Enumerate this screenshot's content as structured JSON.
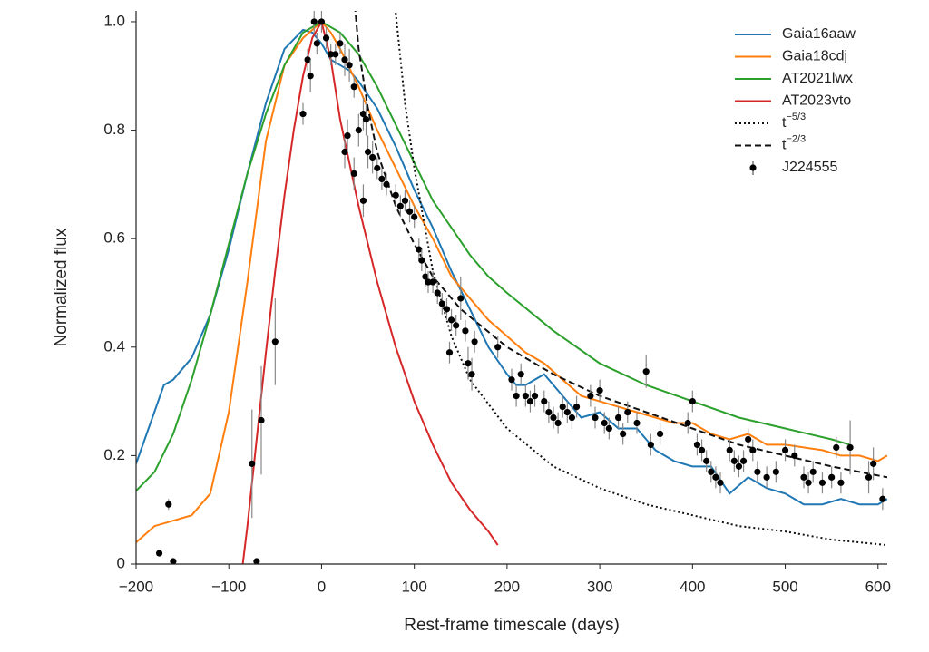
{
  "chart_data": {
    "type": "line",
    "xlabel": "Rest-frame timescale (days)",
    "ylabel": "Normalized flux",
    "xlim": [
      -200,
      610
    ],
    "ylim": [
      0,
      1.02
    ],
    "xticks": [
      {
        "value": -200,
        "label": "−200"
      },
      {
        "value": -100,
        "label": "−100"
      },
      0,
      100,
      200,
      300,
      400,
      500,
      600
    ],
    "yticks": [
      0,
      0.2,
      0.4,
      0.6,
      0.8,
      {
        "value": 1,
        "label": "1.0"
      }
    ],
    "legend": "upper right",
    "series": [
      {
        "name": "Gaia16aaw",
        "color": "#1f77b4",
        "style": "solid",
        "x": [
          -200,
          -170,
          -160,
          -140,
          -120,
          -100,
          -80,
          -60,
          -40,
          -20,
          -10,
          0,
          10,
          20,
          30,
          40,
          60,
          80,
          100,
          120,
          140,
          160,
          180,
          200,
          210,
          220,
          240,
          260,
          280,
          300,
          320,
          340,
          360,
          380,
          400,
          420,
          440,
          460,
          480,
          500,
          520,
          540,
          560,
          580,
          600,
          610
        ],
        "values": [
          0.185,
          0.33,
          0.34,
          0.38,
          0.46,
          0.58,
          0.72,
          0.85,
          0.95,
          0.985,
          0.98,
          0.96,
          0.93,
          0.92,
          0.91,
          0.89,
          0.84,
          0.77,
          0.69,
          0.62,
          0.54,
          0.47,
          0.4,
          0.35,
          0.33,
          0.33,
          0.35,
          0.31,
          0.27,
          0.28,
          0.25,
          0.25,
          0.21,
          0.19,
          0.18,
          0.18,
          0.13,
          0.16,
          0.14,
          0.13,
          0.11,
          0.11,
          0.12,
          0.11,
          0.11,
          0.12
        ]
      },
      {
        "name": "Gaia18cdj",
        "color": "#ff7f0e",
        "style": "solid",
        "x": [
          -200,
          -180,
          -160,
          -140,
          -120,
          -100,
          -80,
          -60,
          -40,
          -20,
          0,
          10,
          20,
          40,
          60,
          80,
          100,
          120,
          140,
          160,
          180,
          200,
          220,
          240,
          260,
          280,
          300,
          320,
          340,
          360,
          380,
          400,
          420,
          440,
          460,
          480,
          500,
          540,
          560,
          580,
          600,
          610
        ],
        "values": [
          0.04,
          0.07,
          0.08,
          0.09,
          0.13,
          0.28,
          0.52,
          0.78,
          0.92,
          0.97,
          1.0,
          0.98,
          0.95,
          0.88,
          0.8,
          0.73,
          0.66,
          0.6,
          0.53,
          0.49,
          0.45,
          0.42,
          0.39,
          0.37,
          0.34,
          0.31,
          0.3,
          0.29,
          0.28,
          0.27,
          0.26,
          0.26,
          0.24,
          0.23,
          0.24,
          0.22,
          0.22,
          0.21,
          0.2,
          0.2,
          0.19,
          0.2
        ]
      },
      {
        "name": "AT2021lwx",
        "color": "#2ca02c",
        "style": "solid",
        "x": [
          -200,
          -180,
          -160,
          -140,
          -120,
          -100,
          -80,
          -60,
          -40,
          -20,
          0,
          20,
          40,
          60,
          80,
          100,
          120,
          140,
          160,
          180,
          200,
          250,
          300,
          350,
          400,
          450,
          500,
          550,
          570
        ],
        "values": [
          0.135,
          0.17,
          0.24,
          0.34,
          0.46,
          0.59,
          0.72,
          0.83,
          0.92,
          0.98,
          1.0,
          0.98,
          0.94,
          0.88,
          0.81,
          0.74,
          0.67,
          0.62,
          0.57,
          0.53,
          0.5,
          0.43,
          0.37,
          0.33,
          0.3,
          0.27,
          0.25,
          0.23,
          0.22
        ]
      },
      {
        "name": "AT2023vto",
        "color": "#d62728",
        "style": "solid",
        "x": [
          -85,
          -80,
          -70,
          -60,
          -50,
          -40,
          -30,
          -20,
          -10,
          0,
          10,
          20,
          40,
          60,
          80,
          100,
          120,
          140,
          160,
          180,
          190
        ],
        "values": [
          0.0,
          0.07,
          0.23,
          0.39,
          0.54,
          0.68,
          0.8,
          0.9,
          0.97,
          1.0,
          0.93,
          0.82,
          0.66,
          0.52,
          0.4,
          0.3,
          0.22,
          0.15,
          0.1,
          0.06,
          0.035
        ]
      },
      {
        "name": "t",
        "exponent": "−5/3",
        "color": "#111111",
        "style": "dotted",
        "x": [
          78,
          90,
          100,
          120,
          140,
          160,
          200,
          250,
          300,
          350,
          400,
          450,
          500,
          550,
          610
        ],
        "values": [
          1.05,
          0.85,
          0.73,
          0.54,
          0.42,
          0.34,
          0.25,
          0.18,
          0.14,
          0.11,
          0.09,
          0.07,
          0.06,
          0.045,
          0.035
        ]
      },
      {
        "name": "t",
        "exponent": "−2/3",
        "color": "#111111",
        "style": "dashed",
        "x": [
          36,
          40,
          50,
          60,
          80,
          100,
          120,
          150,
          200,
          250,
          300,
          350,
          400,
          450,
          500,
          550,
          610
        ],
        "values": [
          1.03,
          0.95,
          0.84,
          0.76,
          0.66,
          0.59,
          0.53,
          0.47,
          0.4,
          0.35,
          0.31,
          0.28,
          0.25,
          0.22,
          0.2,
          0.18,
          0.16
        ]
      },
      {
        "name": "J224555",
        "color": "#000000",
        "style": "points",
        "x": [
          -175,
          -160,
          -165,
          -75,
          -65,
          -70,
          -50,
          -20,
          -15,
          -12,
          -8,
          -5,
          0,
          5,
          10,
          15,
          20,
          25,
          30,
          35,
          25,
          28,
          35,
          40,
          45,
          48,
          50,
          55,
          45,
          60,
          65,
          70,
          80,
          85,
          90,
          95,
          100,
          105,
          108,
          112,
          115,
          120,
          125,
          130,
          135,
          138,
          140,
          145,
          150,
          155,
          158,
          162,
          165,
          190,
          205,
          210,
          215,
          220,
          225,
          230,
          240,
          245,
          250,
          255,
          260,
          265,
          270,
          275,
          290,
          295,
          300,
          305,
          310,
          320,
          325,
          330,
          340,
          350,
          355,
          365,
          395,
          400,
          405,
          410,
          415,
          420,
          425,
          430,
          440,
          445,
          450,
          455,
          460,
          465,
          470,
          480,
          490,
          500,
          510,
          520,
          525,
          530,
          540,
          550,
          555,
          560,
          570,
          590,
          595,
          605
        ],
        "values": [
          0.02,
          0.005,
          0.11,
          0.185,
          0.265,
          0.005,
          0.41,
          0.83,
          0.93,
          0.9,
          1.0,
          0.96,
          1.0,
          0.97,
          0.94,
          0.94,
          0.96,
          0.93,
          0.92,
          0.88,
          0.76,
          0.79,
          0.72,
          0.8,
          0.83,
          0.82,
          0.76,
          0.75,
          0.67,
          0.73,
          0.71,
          0.7,
          0.68,
          0.66,
          0.67,
          0.65,
          0.64,
          0.58,
          0.56,
          0.53,
          0.52,
          0.52,
          0.5,
          0.48,
          0.47,
          0.39,
          0.45,
          0.44,
          0.49,
          0.43,
          0.37,
          0.35,
          0.41,
          0.4,
          0.34,
          0.31,
          0.35,
          0.31,
          0.3,
          0.31,
          0.3,
          0.28,
          0.27,
          0.26,
          0.29,
          0.28,
          0.27,
          0.29,
          0.31,
          0.27,
          0.32,
          0.26,
          0.25,
          0.27,
          0.24,
          0.28,
          0.26,
          0.355,
          0.22,
          0.24,
          0.26,
          0.3,
          0.22,
          0.21,
          0.19,
          0.17,
          0.16,
          0.15,
          0.21,
          0.19,
          0.18,
          0.19,
          0.23,
          0.21,
          0.17,
          0.16,
          0.17,
          0.21,
          0.2,
          0.16,
          0.15,
          0.17,
          0.15,
          0.16,
          0.215,
          0.15,
          0.215,
          0.16,
          0.185,
          0.12
        ],
        "errors": [
          0,
          0,
          0.01,
          0.1,
          0.1,
          0,
          0.08,
          0.02,
          0.02,
          0.03,
          0.02,
          0.02,
          0.02,
          0.02,
          0.02,
          0.02,
          0.02,
          0.03,
          0.03,
          0.02,
          0.03,
          0.03,
          0.03,
          0.03,
          0.03,
          0.03,
          0.03,
          0.03,
          0.03,
          0.02,
          0.02,
          0.02,
          0.02,
          0.02,
          0.02,
          0.02,
          0.02,
          0.02,
          0.02,
          0.02,
          0.02,
          0.02,
          0.02,
          0.02,
          0.02,
          0.02,
          0.02,
          0.02,
          0.04,
          0.02,
          0.03,
          0.03,
          0.02,
          0.02,
          0.02,
          0.02,
          0.02,
          0.02,
          0.02,
          0.02,
          0.02,
          0.02,
          0.02,
          0.02,
          0.02,
          0.02,
          0.02,
          0.02,
          0.02,
          0.02,
          0.02,
          0.02,
          0.02,
          0.02,
          0.02,
          0.02,
          0.02,
          0.03,
          0.02,
          0.02,
          0.02,
          0.02,
          0.02,
          0.02,
          0.02,
          0.02,
          0.02,
          0.02,
          0.02,
          0.02,
          0.02,
          0.02,
          0.02,
          0.02,
          0.02,
          0.02,
          0.02,
          0.02,
          0.02,
          0.02,
          0.02,
          0.02,
          0.02,
          0.02,
          0.02,
          0.02,
          0.05,
          0.03,
          0.03,
          0.02
        ]
      }
    ]
  }
}
